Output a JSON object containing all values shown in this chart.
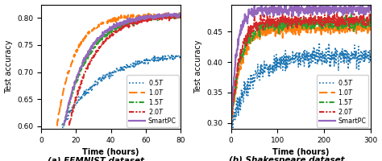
{
  "fig_caption_a": "(a) FEMNIST dataset.",
  "fig_caption_b": "(b) Shakespeare dataset.",
  "ylabel": "Test accuracy",
  "xlabel": "Time (hours)",
  "legend_labels": [
    "$0.5T$",
    "$1.0T$",
    "$1.5T$",
    "$2.0T$",
    "SmartPC"
  ],
  "colors": [
    "#1f77b4",
    "#ff7f0e",
    "#2ca02c",
    "#d62728",
    "#9467bd"
  ],
  "plot_a": {
    "xlim": [
      0,
      80
    ],
    "ylim": [
      0.595,
      0.825
    ],
    "xticks": [
      0,
      20,
      40,
      60,
      80
    ],
    "yticks": [
      0.6,
      0.65,
      0.7,
      0.75,
      0.8
    ]
  },
  "plot_b": {
    "xlim": [
      0,
      300
    ],
    "ylim": [
      0.29,
      0.495
    ],
    "xticks": [
      0,
      100,
      200,
      300
    ],
    "yticks": [
      0.3,
      0.35,
      0.4,
      0.45
    ]
  }
}
